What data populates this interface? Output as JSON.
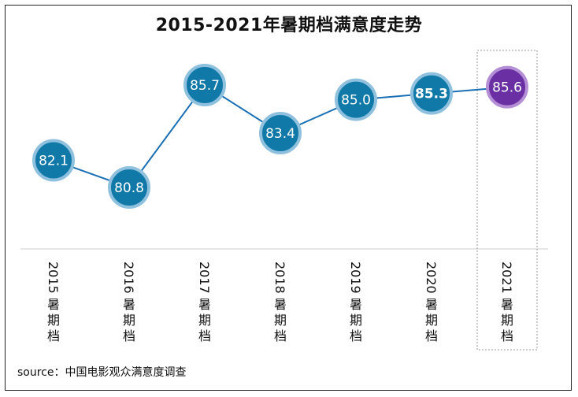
{
  "chart_data": {
    "type": "line",
    "title": "2015-2021年暑期档满意度走势",
    "categories": [
      "2015暑期档",
      "2016暑期档",
      "2017暑期档",
      "2018暑期档",
      "2019暑期档",
      "2020暑期档",
      "2021暑期档"
    ],
    "values": [
      82.1,
      80.8,
      85.7,
      83.4,
      85.0,
      85.3,
      85.6
    ],
    "value_labels": [
      "82.1",
      "80.8",
      "85.7",
      "83.4",
      "85.0",
      "85.3",
      "85.6"
    ],
    "ylim": [
      79.5,
      87.0
    ],
    "grid": false,
    "highlight_index": 6,
    "colors": {
      "line": "#1a6fb5",
      "marker": "#1179a8",
      "marker_ring": "#8fc1de",
      "highlight": "#6a2fa3",
      "highlight_ring": "#b58fd6",
      "axis": "#cccccc"
    }
  },
  "source": "source：中国电影观众满意度调查"
}
